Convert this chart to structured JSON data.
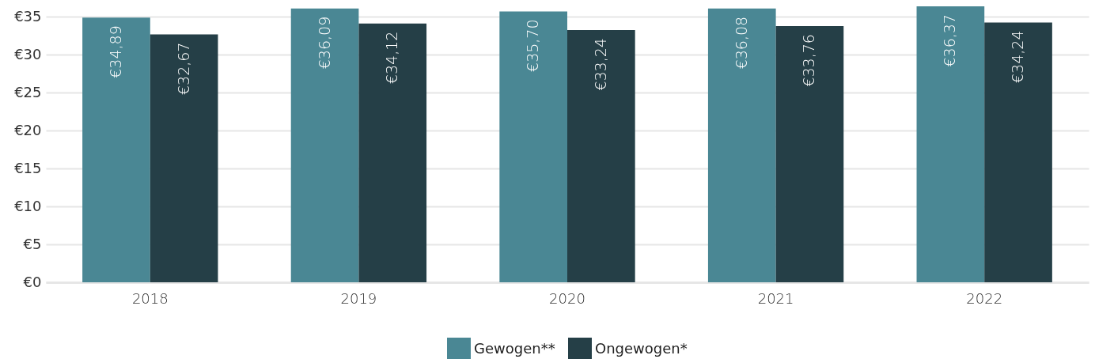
{
  "chart_data": {
    "type": "bar",
    "categories": [
      "2018",
      "2019",
      "2020",
      "2021",
      "2022"
    ],
    "series": [
      {
        "name": "Gewogen**",
        "color": "#4a8794",
        "values": [
          34.89,
          36.09,
          35.7,
          36.08,
          36.37
        ],
        "value_labels": [
          "€34,89",
          "€36,09",
          "€35,70",
          "€36,08",
          "€36,37"
        ]
      },
      {
        "name": "Ongewogen*",
        "color": "#253f47",
        "values": [
          32.67,
          34.12,
          33.24,
          33.76,
          34.24
        ],
        "value_labels": [
          "€32,67",
          "€34,12",
          "€33,24",
          "€33,76",
          "€34,24"
        ]
      }
    ],
    "ylim": [
      0,
      37
    ],
    "yticks": [
      {
        "value": 0,
        "label": "€0"
      },
      {
        "value": 5,
        "label": "€5"
      },
      {
        "value": 10,
        "label": "€10"
      },
      {
        "value": 15,
        "label": "€15"
      },
      {
        "value": 20,
        "label": "€20"
      },
      {
        "value": 25,
        "label": "€25"
      },
      {
        "value": 30,
        "label": "€30"
      },
      {
        "value": 35,
        "label": "€35"
      }
    ],
    "grid": "y",
    "legend": "bottom"
  }
}
